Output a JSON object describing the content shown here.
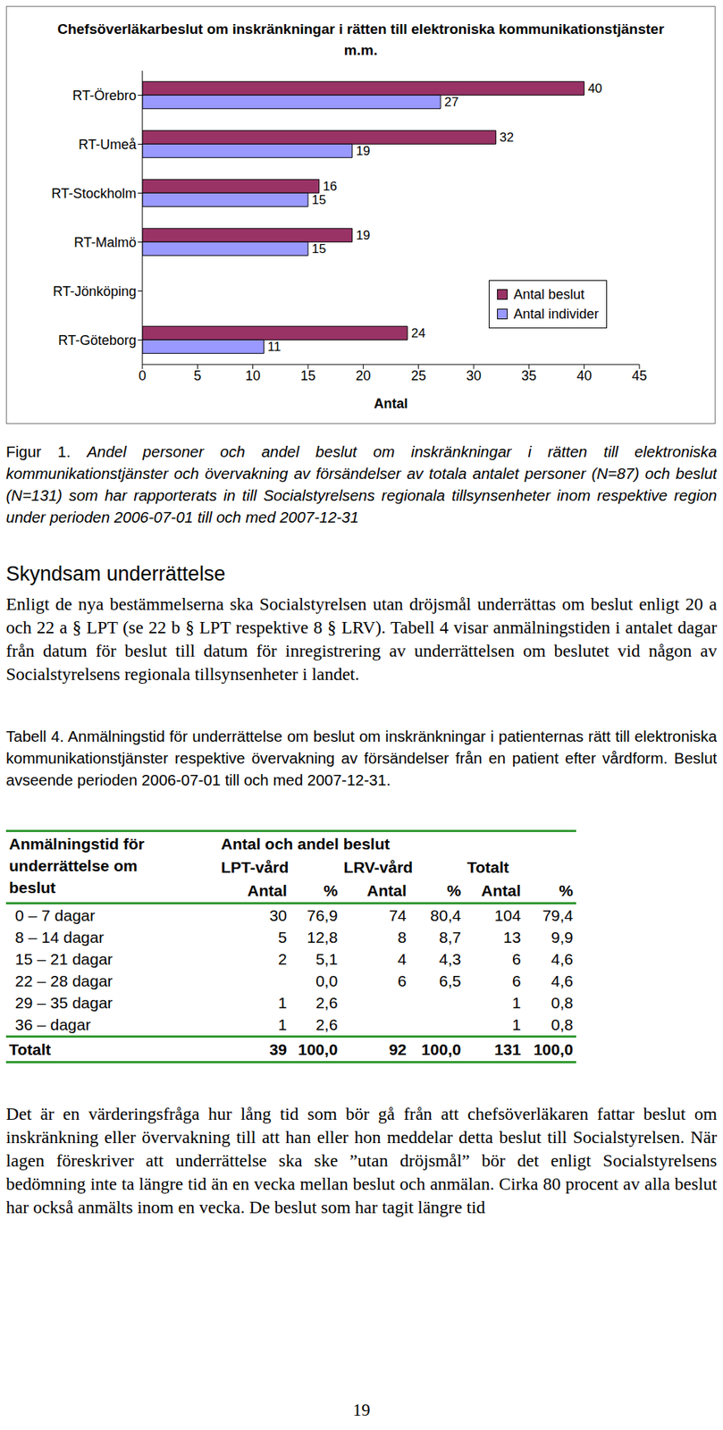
{
  "chart_data": {
    "type": "bar",
    "orientation": "horizontal",
    "title": "Chefsöverläkarbeslut om inskränkningar i rätten till elektroniska kommunikationstjänster m.m.",
    "x_label": "Antal",
    "categories": [
      "RT-Örebro",
      "RT-Umeå",
      "RT-Stockholm",
      "RT-Malmö",
      "RT-Jönköping",
      "RT-Göteborg"
    ],
    "series": [
      {
        "name": "Antal beslut",
        "color": "#993366",
        "values": [
          40,
          32,
          16,
          19,
          null,
          24
        ]
      },
      {
        "name": "Antal individer",
        "color": "#9999ff",
        "values": [
          27,
          19,
          15,
          15,
          null,
          11
        ]
      }
    ],
    "xlim": [
      0,
      45
    ],
    "xticks": [
      0,
      5,
      10,
      15,
      20,
      25,
      30,
      35,
      40,
      45
    ],
    "data_labels": true,
    "legend": "right",
    "grid": false
  },
  "document": {
    "figure_label": "Figur 1.",
    "figure_caption": "Andel personer och andel beslut om inskränkningar i rätten till elektroniska kommunikationstjänster och övervakning av försändelser av totala antalet personer (N=87) och beslut (N=131) som har rapporterats in till Socialstyrelsens regionala tillsynsenheter inom respektive region under perioden 2006-07-01 till och med 2007-12-31",
    "section_heading": "Skyndsam underrättelse",
    "paragraph_1": "Enligt de nya bestämmelserna ska Socialstyrelsen utan dröjsmål underrättas om beslut enligt 20 a och 22 a § LPT (se 22 b § LPT respektive 8 § LRV). Tabell 4 visar anmälningstiden i antalet dagar från datum för beslut till datum för inregistrering av underrättelsen om beslutet vid någon av Socialstyrelsens regionala tillsynsenheter i landet.",
    "table_label": "Tabell 4.",
    "table_caption": "Anmälningstid för underrättelse om beslut om inskränkningar i patienternas rätt till elektroniska kommunikationstjänster respektive övervakning av försändelser från en patient efter vårdform. Beslut avseende perioden 2006-07-01 till och med 2007-12-31.",
    "table": {
      "stub_header": [
        "Anmälningstid för",
        "underrättelse om",
        "beslut"
      ],
      "group_header": "Antal och andel beslut",
      "column_groups": [
        "LPT-vård",
        "LRV-vård",
        "Totalt"
      ],
      "column_headers": [
        "Antal",
        "%",
        "Antal",
        "%",
        "Antal",
        "%"
      ],
      "rows": [
        [
          "0 – 7 dagar",
          "30",
          "76,9",
          "74",
          "80,4",
          "104",
          "79,4"
        ],
        [
          "8 – 14 dagar",
          "5",
          "12,8",
          "8",
          "8,7",
          "13",
          "9,9"
        ],
        [
          "15 – 21 dagar",
          "2",
          "5,1",
          "4",
          "4,3",
          "6",
          "4,6"
        ],
        [
          "22 – 28 dagar",
          null,
          "0,0",
          "6",
          "6,5",
          "6",
          "4,6"
        ],
        [
          "29 – 35 dagar",
          "1",
          "2,6",
          null,
          null,
          "1",
          "0,8"
        ],
        [
          "36 – dagar",
          "1",
          "2,6",
          null,
          null,
          "1",
          "0,8"
        ]
      ],
      "total_row": [
        "Totalt",
        "39",
        "100,0",
        "92",
        "100,0",
        "131",
        "100,0"
      ]
    },
    "paragraph_2": "Det är en värderingsfråga hur lång tid som bör gå från att chefsöverläkaren fattar beslut om inskränkning eller övervakning till att han eller hon meddelar detta beslut till Socialstyrelsen. När lagen föreskriver att underrättelse ska ske ”utan dröjsmål” bör det enligt Socialstyrelsens bedömning inte ta längre tid än en vecka mellan beslut och anmälan. Cirka 80 procent av alla beslut har också anmälts inom en vecka. De beslut som har tagit längre tid",
    "page_number": "19"
  }
}
